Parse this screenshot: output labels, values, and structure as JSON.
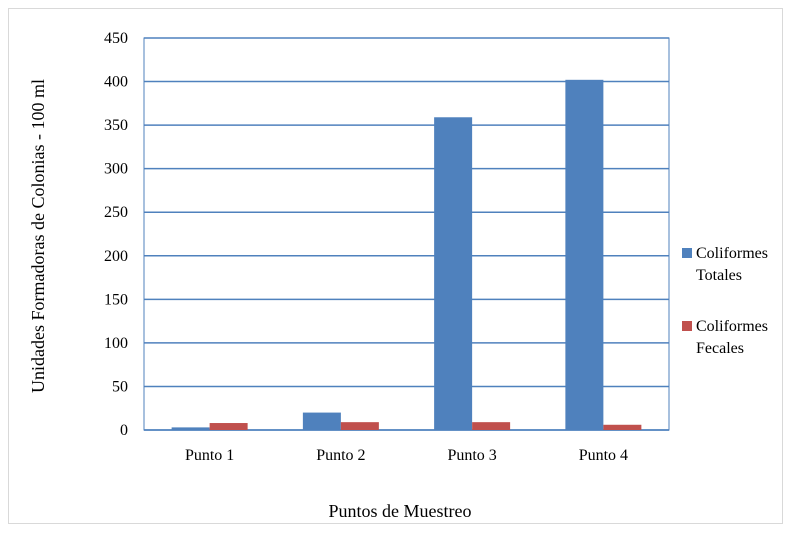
{
  "chart_data": {
    "type": "bar",
    "categories": [
      "Punto 1",
      "Punto 2",
      "Punto 3",
      "Punto 4"
    ],
    "series": [
      {
        "name": "Coliformes Totales",
        "name_lines": [
          "Coliformes",
          "Totales"
        ],
        "color": "#4f81bd",
        "values": [
          3,
          20,
          359,
          402
        ]
      },
      {
        "name": "Coliformes Fecales",
        "name_lines": [
          "Coliformes",
          "Fecales"
        ],
        "color": "#c0504d",
        "values": [
          8,
          9,
          9,
          6
        ]
      }
    ],
    "xlabel": "Puntos de Muestreo",
    "ylabel": "Unidades Formadoras de Colonias - 100 ml",
    "ylim": [
      0,
      450
    ],
    "yticks": [
      0,
      50,
      100,
      150,
      200,
      250,
      300,
      350,
      400,
      450
    ],
    "grid": true,
    "grid_color": "#4f81bd",
    "legend_position": "right"
  }
}
